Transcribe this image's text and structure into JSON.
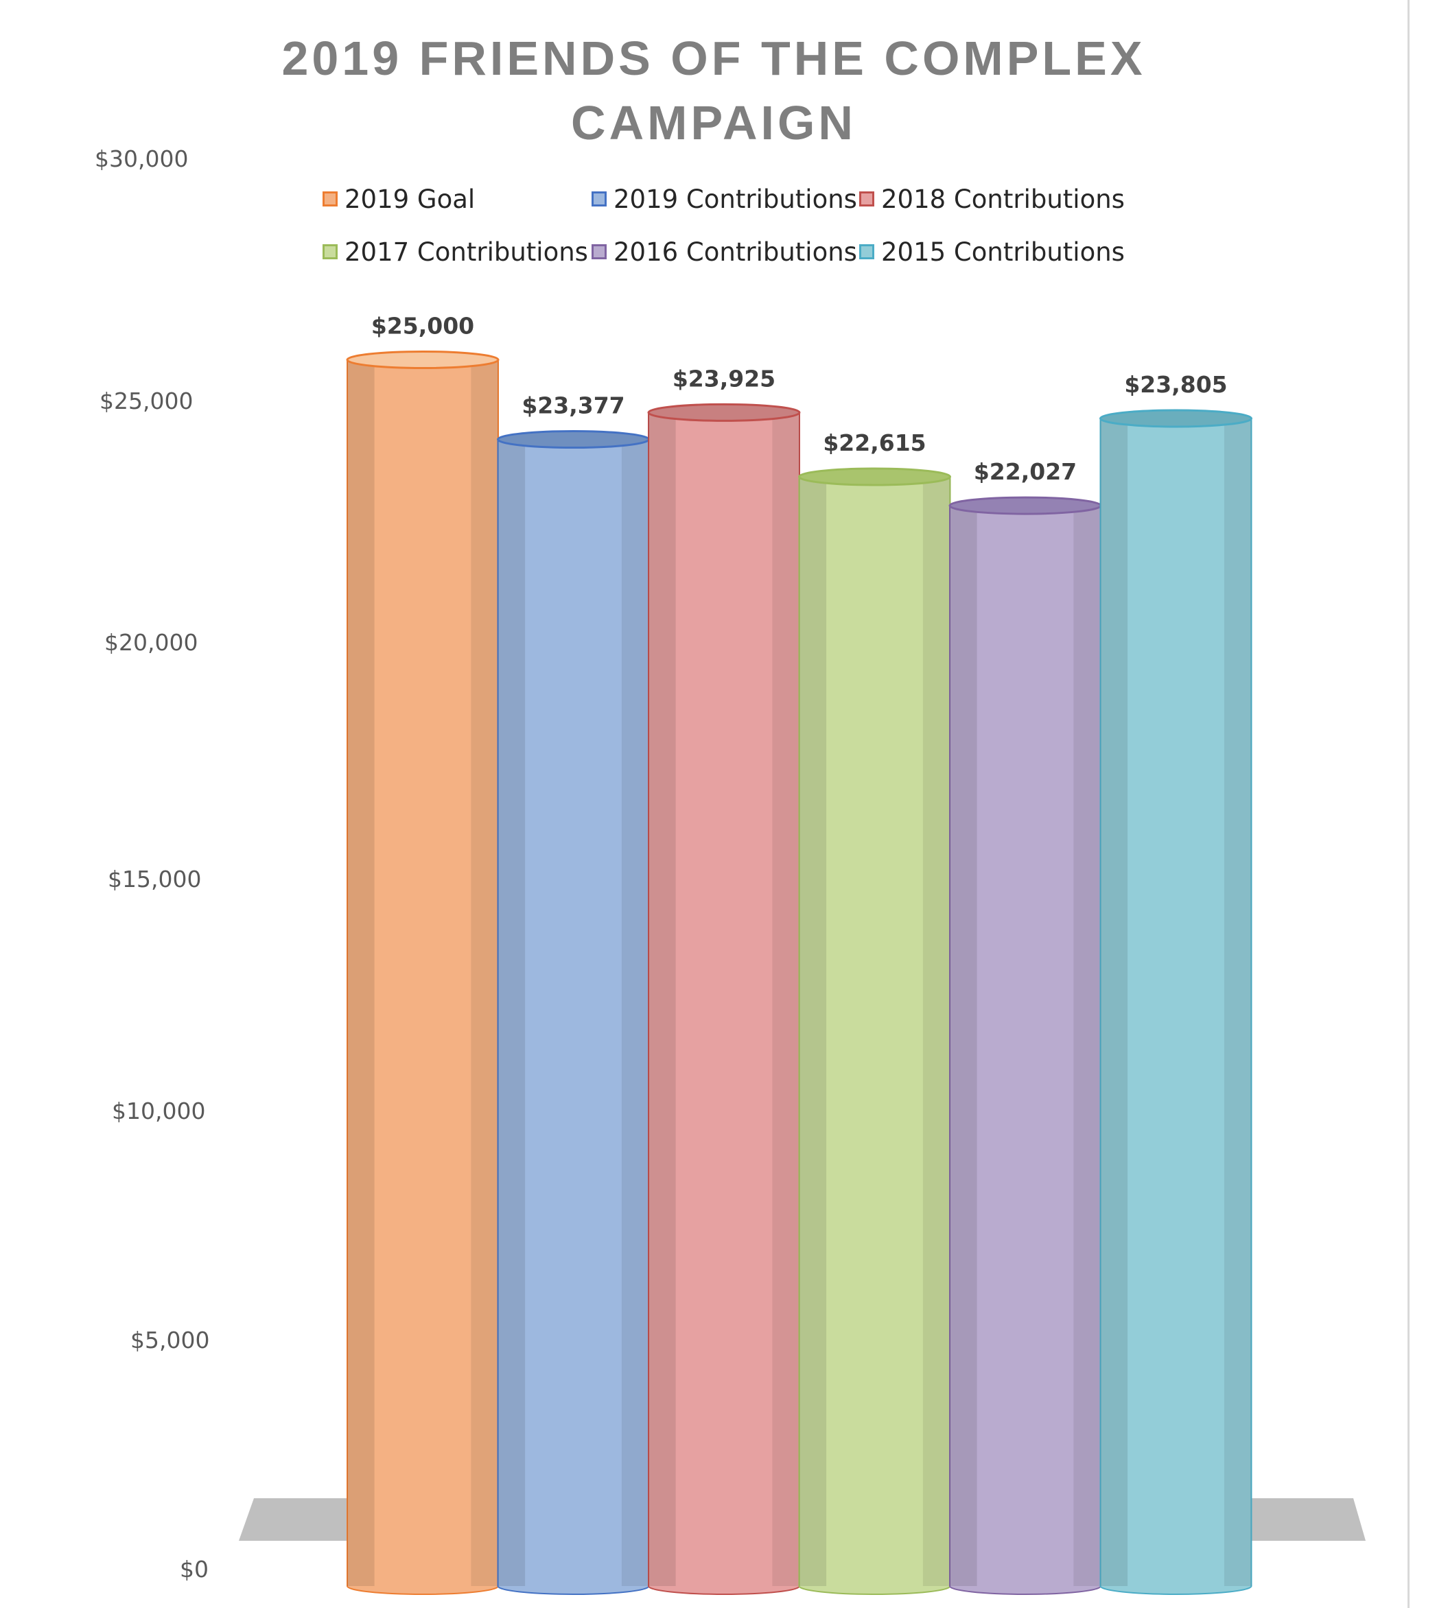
{
  "chart_data": {
    "type": "bar",
    "title_lines": [
      "2019 FRIENDS OF THE COMPLEX",
      "CAMPAIGN"
    ],
    "xlabel": "",
    "ylabel": "",
    "ylim": [
      0,
      30000
    ],
    "yticks": [
      "$0",
      "$5,000",
      "$10,000",
      "$15,000",
      "$20,000",
      "$25,000",
      "$30,000"
    ],
    "series": [
      {
        "name": "2019 Goal",
        "value": 25000,
        "label": "$25,000",
        "color": "#f4b183",
        "top": "#f7c79f",
        "edge": "#ed7d31"
      },
      {
        "name": "2019 Contributions",
        "value": 23377,
        "label": "$23,377",
        "color": "#9db8df",
        "top": "#6f8fbf",
        "edge": "#4472c4"
      },
      {
        "name": "2018 Contributions",
        "value": 23925,
        "label": "$23,925",
        "color": "#e6a1a1",
        "top": "#c88080",
        "edge": "#c0504d"
      },
      {
        "name": "2017 Contributions",
        "value": 22615,
        "label": "$22,615",
        "color": "#c9dc9d",
        "top": "#a9c46d",
        "edge": "#9bbb59"
      },
      {
        "name": "2016 Contributions",
        "value": 22027,
        "label": "$22,027",
        "color": "#b9abcf",
        "top": "#9482b3",
        "edge": "#8064a2"
      },
      {
        "name": "2015 Contributions",
        "value": 23805,
        "label": "$23,805",
        "color": "#93cdd8",
        "top": "#6aaebd",
        "edge": "#4bacc6"
      }
    ],
    "grid": false,
    "legend_position": "top",
    "style": "3d-cylinder"
  }
}
